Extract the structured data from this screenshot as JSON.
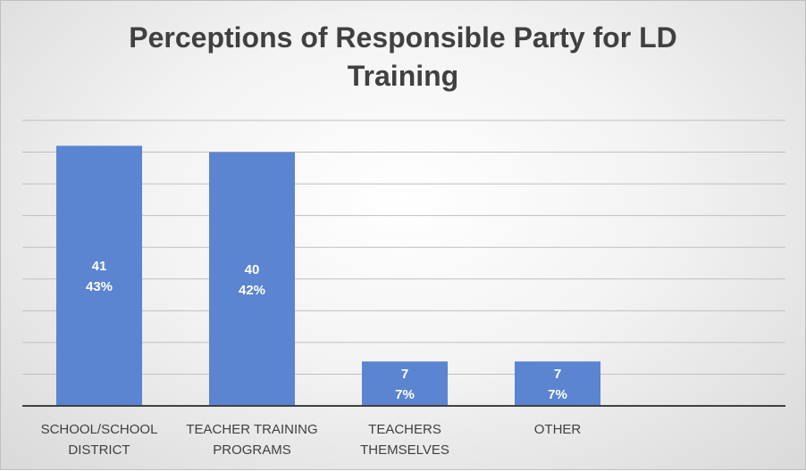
{
  "chart_data": {
    "type": "bar",
    "title_lines": [
      "Perceptions of Responsible Party for LD",
      "Training"
    ],
    "categories": [
      [
        "SCHOOL/SCHOOL",
        "DISTRICT"
      ],
      [
        "TEACHER TRAINING",
        "PROGRAMS"
      ],
      [
        "TEACHERS",
        "THEMSELVES"
      ],
      [
        "OTHER"
      ]
    ],
    "values": [
      41,
      40,
      7,
      7
    ],
    "percent_labels": [
      "43%",
      "42%",
      "7%",
      "7%"
    ],
    "ylim": [
      0,
      45
    ],
    "gridlines": true,
    "bar_color": "#5b84d1",
    "label_color": "#ffffff",
    "grid_color": "#bfbfbf",
    "axis_color": "#404040"
  }
}
